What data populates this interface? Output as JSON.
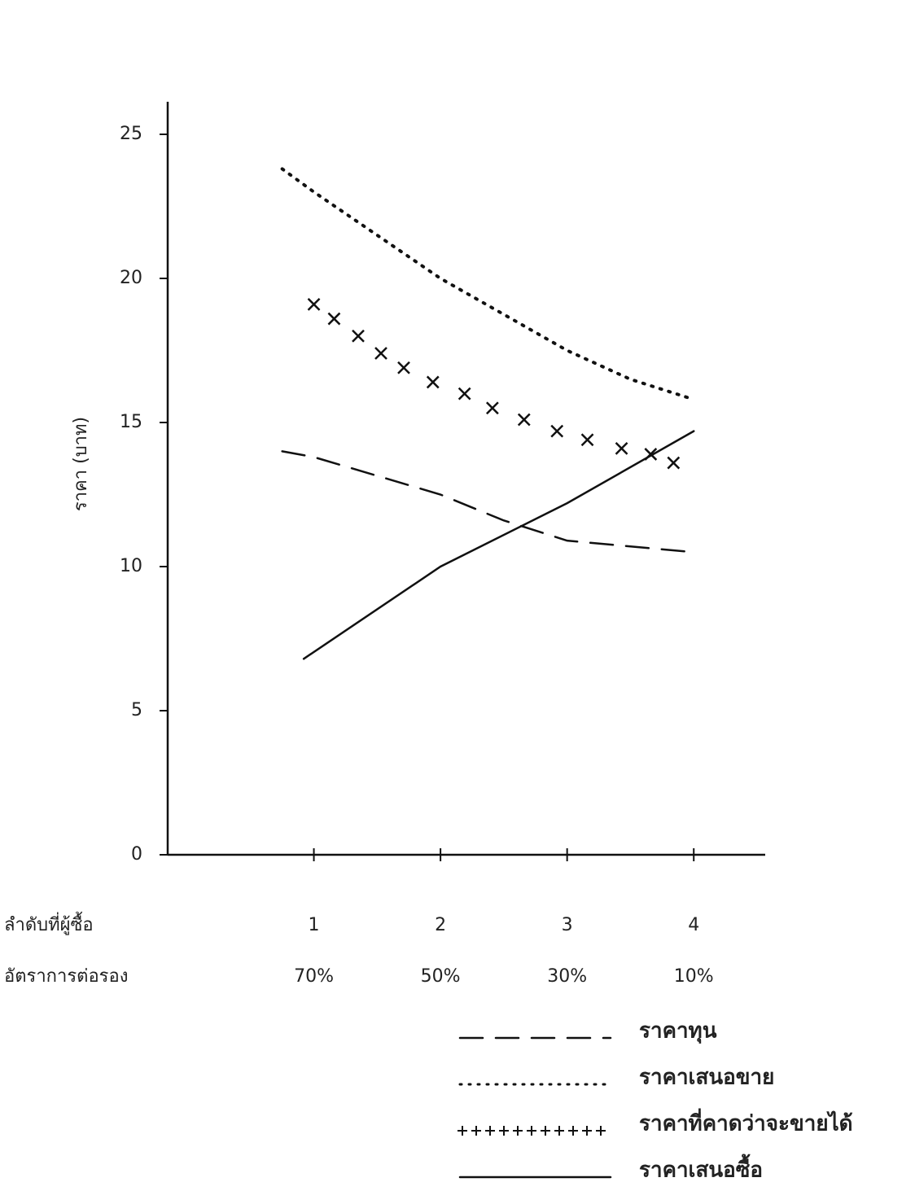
{
  "chart_data": {
    "type": "line",
    "y_label": "ราคา (บาท)",
    "x_row_labels": [
      "ลำดับที่ผู้ซื้อ",
      "อัตราการต่อรอง"
    ],
    "xticks": [
      1,
      2,
      3,
      4
    ],
    "x_second_labels": [
      "70%",
      "50%",
      "30%",
      "10%"
    ],
    "xlim": [
      0,
      4.5
    ],
    "ylim": [
      0,
      25
    ],
    "yticks": [
      0,
      5,
      10,
      15,
      20,
      25
    ],
    "series": [
      {
        "name": "ราคาทุน",
        "color": "#111111",
        "style": "dashed",
        "x": [
          0.75,
          1,
          2,
          2.5,
          3,
          3.5,
          4
        ],
        "values": [
          14,
          13.8,
          12.5,
          11.6,
          10.9,
          10.7,
          10.5
        ]
      },
      {
        "name": "ราคาเสนอขาย",
        "color": "#111111",
        "style": "dotted",
        "x": [
          0.75,
          1,
          2,
          3,
          3.5,
          4
        ],
        "values": [
          23.8,
          23,
          20,
          17.5,
          16.5,
          15.8
        ]
      },
      {
        "name": "ราคาที่คาดว่าจะขายได้",
        "color": "#111111",
        "style": "cross",
        "x": [
          1,
          1.16,
          1.35,
          1.53,
          1.71,
          1.94,
          2.19,
          2.41,
          2.66,
          2.92,
          3.16,
          3.43,
          3.66,
          3.84
        ],
        "values": [
          19.1,
          18.6,
          18,
          17.4,
          16.9,
          16.4,
          16,
          15.5,
          15.1,
          14.7,
          14.4,
          14.1,
          13.9,
          13.6
        ]
      },
      {
        "name": "ราคาเสนอซื้อ",
        "color": "#111111",
        "style": "solid",
        "x": [
          0.92,
          2,
          3,
          4
        ],
        "values": [
          6.8,
          10,
          12.2,
          14.7
        ]
      }
    ]
  }
}
